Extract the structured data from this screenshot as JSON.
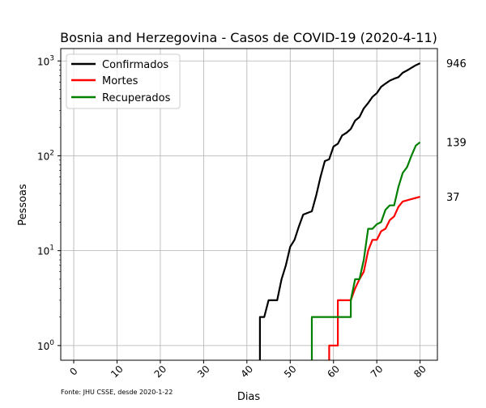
{
  "chart_data": {
    "type": "line",
    "title": "Bosnia and Herzegovina - Casos de COVID-19 (2020-4-11)",
    "xlabel": "Dias",
    "ylabel": "Pessoas",
    "yscale": "log",
    "xlim": [
      -3,
      84
    ],
    "ylim": [
      0.7,
      1350
    ],
    "grid": true,
    "legend_position": "top-left",
    "x_ticks": [
      0,
      10,
      20,
      30,
      40,
      50,
      60,
      70,
      80
    ],
    "y_ticks": [
      {
        "value": 1,
        "base": "10",
        "exp": "0"
      },
      {
        "value": 10,
        "base": "10",
        "exp": "1"
      },
      {
        "value": 100,
        "base": "10",
        "exp": "2"
      },
      {
        "value": 1000,
        "base": "10",
        "exp": "3"
      }
    ],
    "source_note": "Fonte: JHU CSSE, desde 2020-1-22",
    "series": [
      {
        "name": "Confirmados",
        "color": "#000000",
        "end_label": "946",
        "end_value": 946,
        "points": [
          [
            43,
            0.5
          ],
          [
            43,
            2
          ],
          [
            44,
            2
          ],
          [
            45,
            3
          ],
          [
            46,
            3
          ],
          [
            47,
            3
          ],
          [
            48,
            5
          ],
          [
            49,
            7
          ],
          [
            50,
            11
          ],
          [
            51,
            13
          ],
          [
            52,
            18
          ],
          [
            53,
            24
          ],
          [
            54,
            25
          ],
          [
            55,
            26
          ],
          [
            56,
            38
          ],
          [
            57,
            60
          ],
          [
            58,
            88
          ],
          [
            59,
            92
          ],
          [
            60,
            125
          ],
          [
            61,
            134
          ],
          [
            62,
            164
          ],
          [
            63,
            175
          ],
          [
            64,
            192
          ],
          [
            65,
            235
          ],
          [
            66,
            256
          ],
          [
            67,
            316
          ],
          [
            68,
            360
          ],
          [
            69,
            418
          ],
          [
            70,
            457
          ],
          [
            71,
            533
          ],
          [
            72,
            577
          ],
          [
            73,
            620
          ],
          [
            74,
            650
          ],
          [
            75,
            675
          ],
          [
            76,
            750
          ],
          [
            77,
            795
          ],
          [
            78,
            845
          ],
          [
            79,
            900
          ],
          [
            80,
            946
          ]
        ]
      },
      {
        "name": "Mortes",
        "color": "#ff0000",
        "end_label": "37",
        "end_value": 37,
        "points": [
          [
            59,
            0.5
          ],
          [
            59,
            1
          ],
          [
            60,
            1
          ],
          [
            61,
            1
          ],
          [
            61,
            3
          ],
          [
            62,
            3
          ],
          [
            63,
            3
          ],
          [
            64,
            3
          ],
          [
            65,
            4
          ],
          [
            66,
            5
          ],
          [
            67,
            6
          ],
          [
            68,
            10
          ],
          [
            69,
            13
          ],
          [
            70,
            13
          ],
          [
            71,
            16
          ],
          [
            72,
            17
          ],
          [
            73,
            21
          ],
          [
            74,
            23
          ],
          [
            75,
            29
          ],
          [
            76,
            33
          ],
          [
            77,
            34
          ],
          [
            78,
            35
          ],
          [
            79,
            36
          ],
          [
            80,
            37
          ]
        ]
      },
      {
        "name": "Recuperados",
        "color": "#008000",
        "end_label": "139",
        "end_value": 139,
        "points": [
          [
            55,
            0.5
          ],
          [
            55,
            2
          ],
          [
            56,
            2
          ],
          [
            57,
            2
          ],
          [
            58,
            2
          ],
          [
            59,
            2
          ],
          [
            60,
            2
          ],
          [
            61,
            2
          ],
          [
            62,
            2
          ],
          [
            63,
            2
          ],
          [
            64,
            2
          ],
          [
            64,
            3
          ],
          [
            65,
            5
          ],
          [
            66,
            5
          ],
          [
            67,
            8
          ],
          [
            68,
            17
          ],
          [
            69,
            17
          ],
          [
            70,
            19
          ],
          [
            71,
            20
          ],
          [
            72,
            27
          ],
          [
            73,
            30
          ],
          [
            74,
            30
          ],
          [
            75,
            47
          ],
          [
            76,
            66
          ],
          [
            77,
            76
          ],
          [
            78,
            100
          ],
          [
            79,
            128
          ],
          [
            80,
            139
          ]
        ]
      }
    ]
  }
}
